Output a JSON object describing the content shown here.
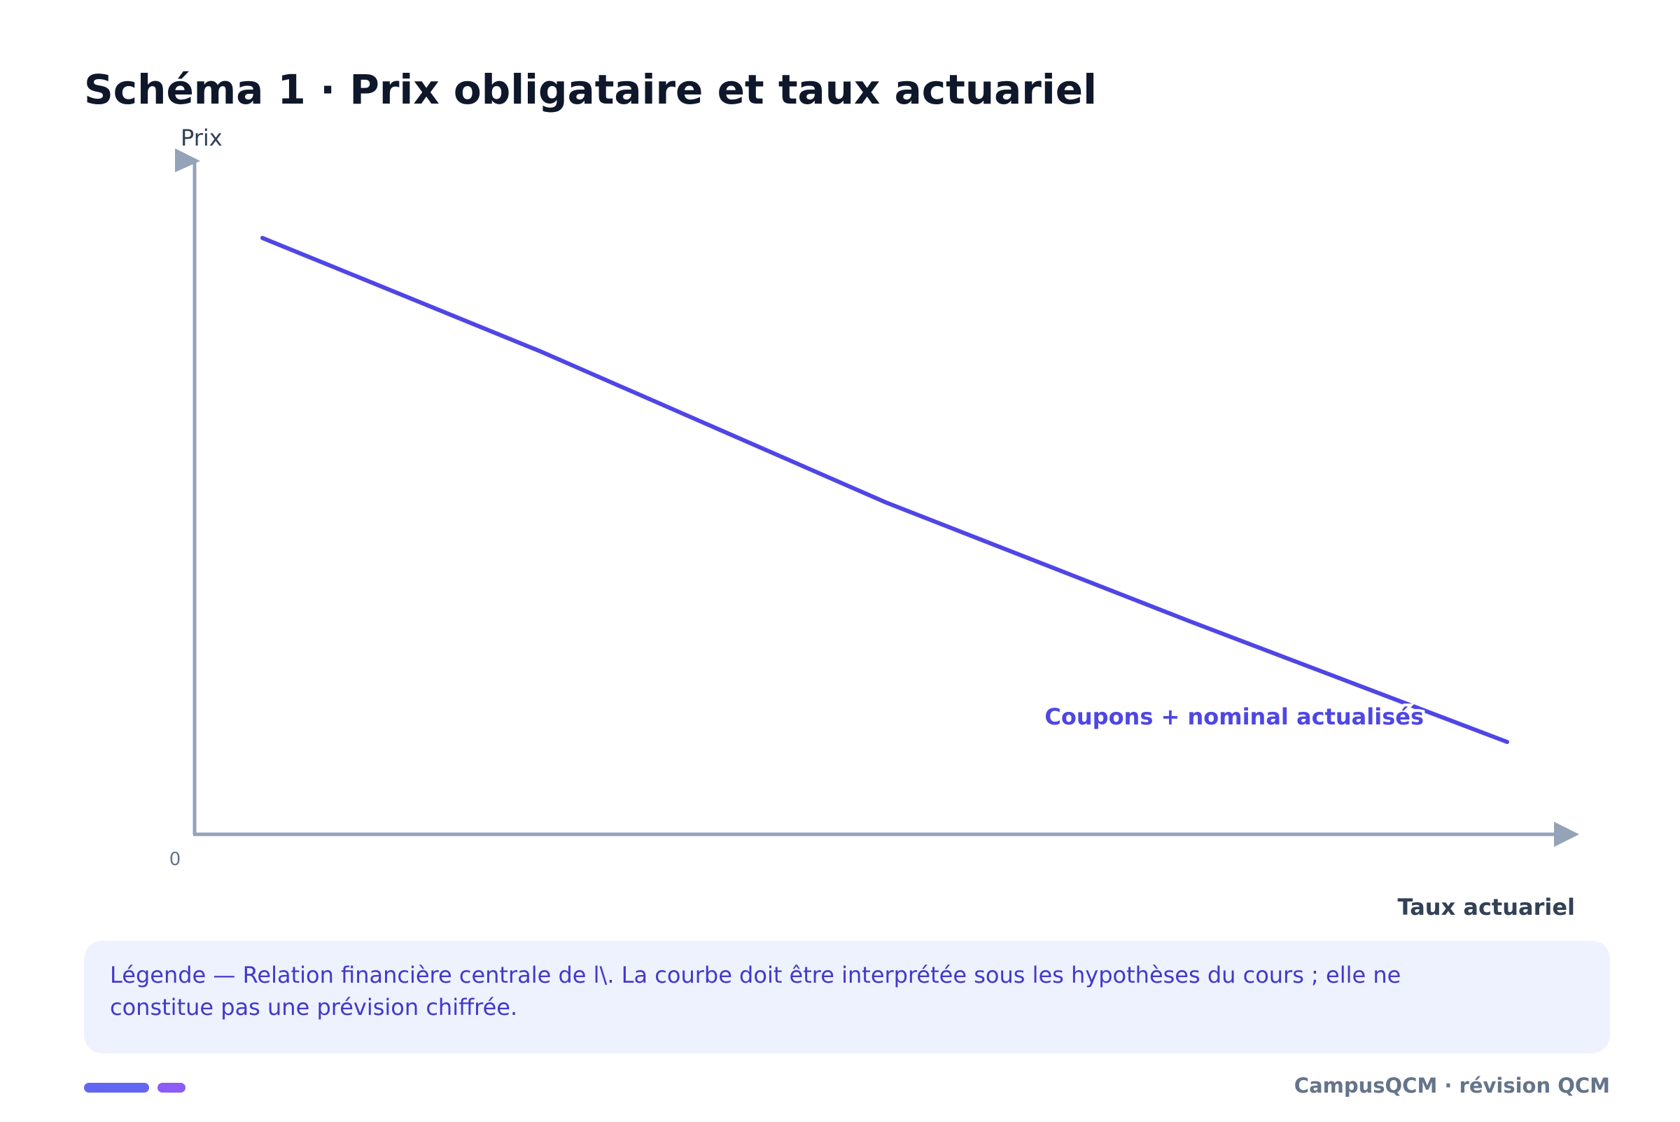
{
  "header": {
    "title": "Schéma 1 · Prix obligataire et taux actuariel"
  },
  "axes": {
    "y_label": "Prix",
    "x_label": "Taux actuariel",
    "origin_label": "0"
  },
  "curve": {
    "label": "Coupons + nominal actualisés"
  },
  "caption": {
    "text": "Légende — Relation financière centrale de l\\. La courbe doit être interprétée sous les hypothèses du cours ; elle ne constitue pas une prévision chiffrée."
  },
  "footer": {
    "text": "CampusQCM · révision QCM"
  }
}
